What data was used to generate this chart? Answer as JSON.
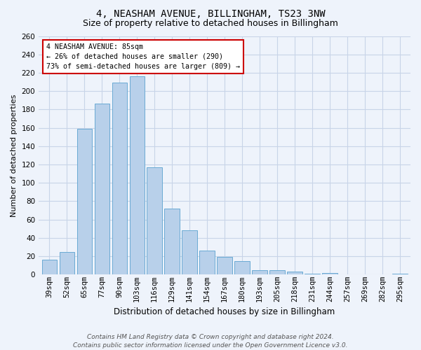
{
  "title": "4, NEASHAM AVENUE, BILLINGHAM, TS23 3NW",
  "subtitle": "Size of property relative to detached houses in Billingham",
  "xlabel": "Distribution of detached houses by size in Billingham",
  "ylabel": "Number of detached properties",
  "categories": [
    "39sqm",
    "52sqm",
    "65sqm",
    "77sqm",
    "90sqm",
    "103sqm",
    "116sqm",
    "129sqm",
    "141sqm",
    "154sqm",
    "167sqm",
    "180sqm",
    "193sqm",
    "205sqm",
    "218sqm",
    "231sqm",
    "244sqm",
    "257sqm",
    "269sqm",
    "282sqm",
    "295sqm"
  ],
  "bar_values": [
    16,
    25,
    159,
    186,
    209,
    216,
    117,
    72,
    48,
    26,
    19,
    15,
    5,
    5,
    3,
    1,
    2,
    0,
    0,
    0,
    1
  ],
  "ylim": [
    0,
    260
  ],
  "bar_color": "#b8d0ea",
  "bar_edge_color": "#6aaad4",
  "annotation_line1": "4 NEASHAM AVENUE: 85sqm",
  "annotation_line2": "← 26% of detached houses are smaller (290)",
  "annotation_line3": "73% of semi-detached houses are larger (809) →",
  "annotation_box_color": "#ffffff",
  "annotation_box_edge": "#cc0000",
  "footer_line1": "Contains HM Land Registry data © Crown copyright and database right 2024.",
  "footer_line2": "Contains public sector information licensed under the Open Government Licence v3.0.",
  "bg_color": "#eef3fb",
  "grid_color": "#c8d4e8",
  "title_fontsize": 10,
  "subtitle_fontsize": 9,
  "ylabel_fontsize": 8,
  "xlabel_fontsize": 8.5,
  "tick_fontsize": 7.5,
  "footer_fontsize": 6.5
}
